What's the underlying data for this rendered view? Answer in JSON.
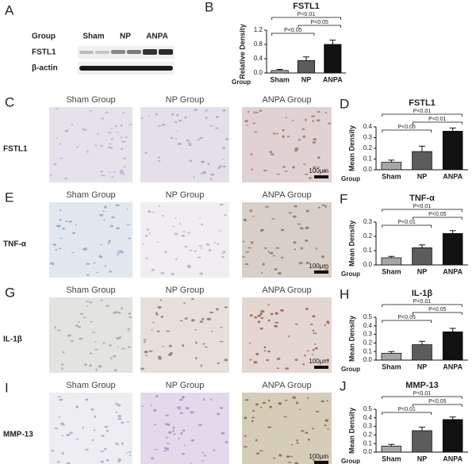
{
  "figure": {
    "blot": {
      "label": "A",
      "header": "Group",
      "lanes": [
        "Sham",
        "NP",
        "ANPA"
      ],
      "bands": [
        "FSTL1",
        "β-actin"
      ]
    },
    "histology": {
      "column_titles": [
        "Sham Group",
        "NP Group",
        "ANPA  Group"
      ],
      "rows": [
        {
          "label": "C",
          "marker": "FSTL1"
        },
        {
          "label": "E",
          "marker": "TNF-α"
        },
        {
          "label": "G",
          "marker": "IL-1β"
        },
        {
          "label": "I",
          "marker": "MMP-13"
        }
      ],
      "scale_bar": "100μm"
    }
  },
  "chart_data": [
    {
      "type": "bar",
      "panel": "B",
      "title": "FSTL1",
      "y_label": "Relative Density",
      "x_label": "Group",
      "categories": [
        "Sham",
        "NP",
        "ANPA"
      ],
      "values": [
        0.07,
        0.35,
        0.8
      ],
      "errors": [
        0.03,
        0.1,
        0.12
      ],
      "colors": [
        "#a6a6a6",
        "#5c5c5c",
        "#111111"
      ],
      "ylim": [
        0,
        1.2
      ],
      "yticks": [
        {
          "value": 0,
          "label": "0.0"
        },
        0.4,
        0.8,
        1.2
      ],
      "annotations": [
        "P<0.01",
        "P<0.05",
        "P<0.05"
      ]
    },
    {
      "type": "bar",
      "panel": "D",
      "title": "FSTL1",
      "y_label": "Mean Density",
      "x_label": "Group",
      "categories": [
        "Sham",
        "NP",
        "ANPA"
      ],
      "values": [
        0.07,
        0.17,
        0.36
      ],
      "errors": [
        0.02,
        0.05,
        0.03
      ],
      "colors": [
        "#a6a6a6",
        "#5c5c5c",
        "#111111"
      ],
      "ylim": [
        0,
        0.4
      ],
      "yticks": [
        {
          "value": 0,
          "label": "0.0"
        },
        0.1,
        0.2,
        0.3,
        0.4
      ],
      "annotations": [
        "P<0.01",
        "P<0.05",
        "P<0.01"
      ]
    },
    {
      "type": "bar",
      "panel": "F",
      "title": "TNF-α",
      "y_label": "Mean Density",
      "x_label": "Group",
      "categories": [
        "Sham",
        "NP",
        "ANPA"
      ],
      "values": [
        0.05,
        0.12,
        0.22
      ],
      "errors": [
        0.01,
        0.02,
        0.02
      ],
      "colors": [
        "#a6a6a6",
        "#5c5c5c",
        "#111111"
      ],
      "ylim": [
        0,
        0.3
      ],
      "yticks": [
        {
          "value": 0,
          "label": "0.0"
        },
        0.1,
        0.2,
        0.3
      ],
      "annotations": [
        "P<0.01",
        "P<0.01",
        "P<0.05"
      ]
    },
    {
      "type": "bar",
      "panel": "H",
      "title": "IL-1β",
      "y_label": "Mean Density",
      "x_label": "Group",
      "categories": [
        "Sham",
        "NP",
        "ANPA"
      ],
      "values": [
        0.08,
        0.18,
        0.33
      ],
      "errors": [
        0.02,
        0.04,
        0.04
      ],
      "colors": [
        "#a6a6a6",
        "#5c5c5c",
        "#111111"
      ],
      "ylim": [
        0,
        0.5
      ],
      "yticks": [
        {
          "value": 0,
          "label": "0.0"
        },
        0.1,
        0.2,
        0.3,
        0.4,
        0.5
      ],
      "annotations": [
        "P<0.01",
        "P<0.05",
        "P<0.05"
      ]
    },
    {
      "type": "bar",
      "panel": "J",
      "title": "MMP-13",
      "y_label": "Mean Density",
      "x_label": "Group",
      "categories": [
        "Sham",
        "NP",
        "ANPA"
      ],
      "values": [
        0.07,
        0.25,
        0.38
      ],
      "errors": [
        0.02,
        0.04,
        0.03
      ],
      "colors": [
        "#a6a6a6",
        "#5c5c5c",
        "#111111"
      ],
      "ylim": [
        0,
        0.5
      ],
      "yticks": [
        {
          "value": 0,
          "label": "0.0"
        },
        0.1,
        0.2,
        0.3,
        0.4,
        0.5
      ],
      "annotations": [
        "P<0.01",
        "P<0.01",
        "P<0.05"
      ]
    }
  ]
}
